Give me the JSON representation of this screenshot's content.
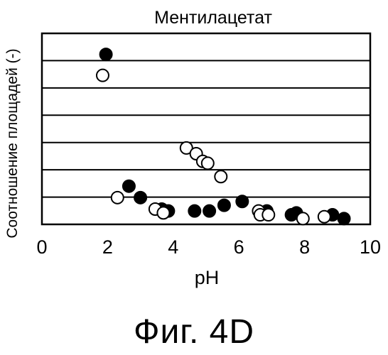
{
  "chart_data": {
    "type": "scatter",
    "title": "Ментилацетат",
    "xlabel": "pH",
    "ylabel": "Соотношение площадей (-)",
    "xlim": [
      0,
      10
    ],
    "xticks": [
      "0",
      "2",
      "4",
      "6",
      "8",
      "10"
    ],
    "ylim": [
      0,
      1
    ],
    "grid": "horizontal",
    "gridlines": 7,
    "series": [
      {
        "marker": "filled-circle",
        "color": "#000000",
        "points": [
          [
            1.95,
            0.89
          ],
          [
            2.65,
            0.2
          ],
          [
            3.0,
            0.14
          ],
          [
            3.65,
            0.08
          ],
          [
            3.85,
            0.07
          ],
          [
            4.65,
            0.07
          ],
          [
            5.1,
            0.07
          ],
          [
            5.55,
            0.1
          ],
          [
            6.1,
            0.12
          ],
          [
            6.85,
            0.07
          ],
          [
            7.6,
            0.05
          ],
          [
            7.75,
            0.06
          ],
          [
            8.85,
            0.05
          ],
          [
            9.2,
            0.03
          ]
        ]
      },
      {
        "marker": "open-circle",
        "color": "#000000",
        "points": [
          [
            1.85,
            0.78
          ],
          [
            2.3,
            0.14
          ],
          [
            3.45,
            0.08
          ],
          [
            3.7,
            0.06
          ],
          [
            4.4,
            0.4
          ],
          [
            4.7,
            0.37
          ],
          [
            4.9,
            0.33
          ],
          [
            5.05,
            0.32
          ],
          [
            5.45,
            0.25
          ],
          [
            6.6,
            0.07
          ],
          [
            6.65,
            0.05
          ],
          [
            6.9,
            0.05
          ],
          [
            7.95,
            0.03
          ],
          [
            8.6,
            0.04
          ]
        ]
      }
    ]
  },
  "caption": "Фиг. 4D"
}
